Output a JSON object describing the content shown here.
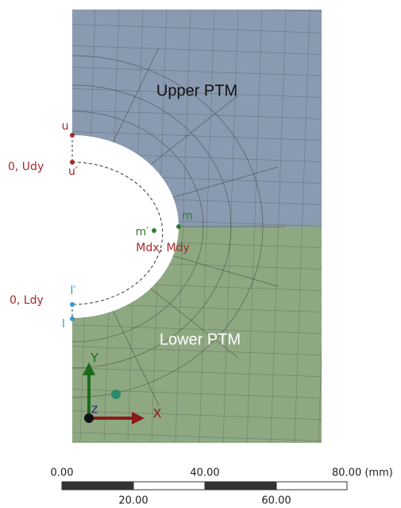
{
  "regions": {
    "upper": "Upper PTM",
    "lower": "Lower PTM"
  },
  "points": {
    "u": "u",
    "u_prime": "u′",
    "u_coord": "0, Udy",
    "m": "m",
    "m_prime": "m′",
    "m_coord": "Mdx, Mdy",
    "l_prime": "l′",
    "l": "l",
    "l_coord": "0, Ldy"
  },
  "triad": {
    "x": "X",
    "y": "Y",
    "z": "Z"
  },
  "scale_bar": {
    "top_labels": [
      "0.00",
      "40.00",
      "80.00 (mm)"
    ],
    "bottom_labels": [
      "20.00",
      "60.00"
    ]
  }
}
